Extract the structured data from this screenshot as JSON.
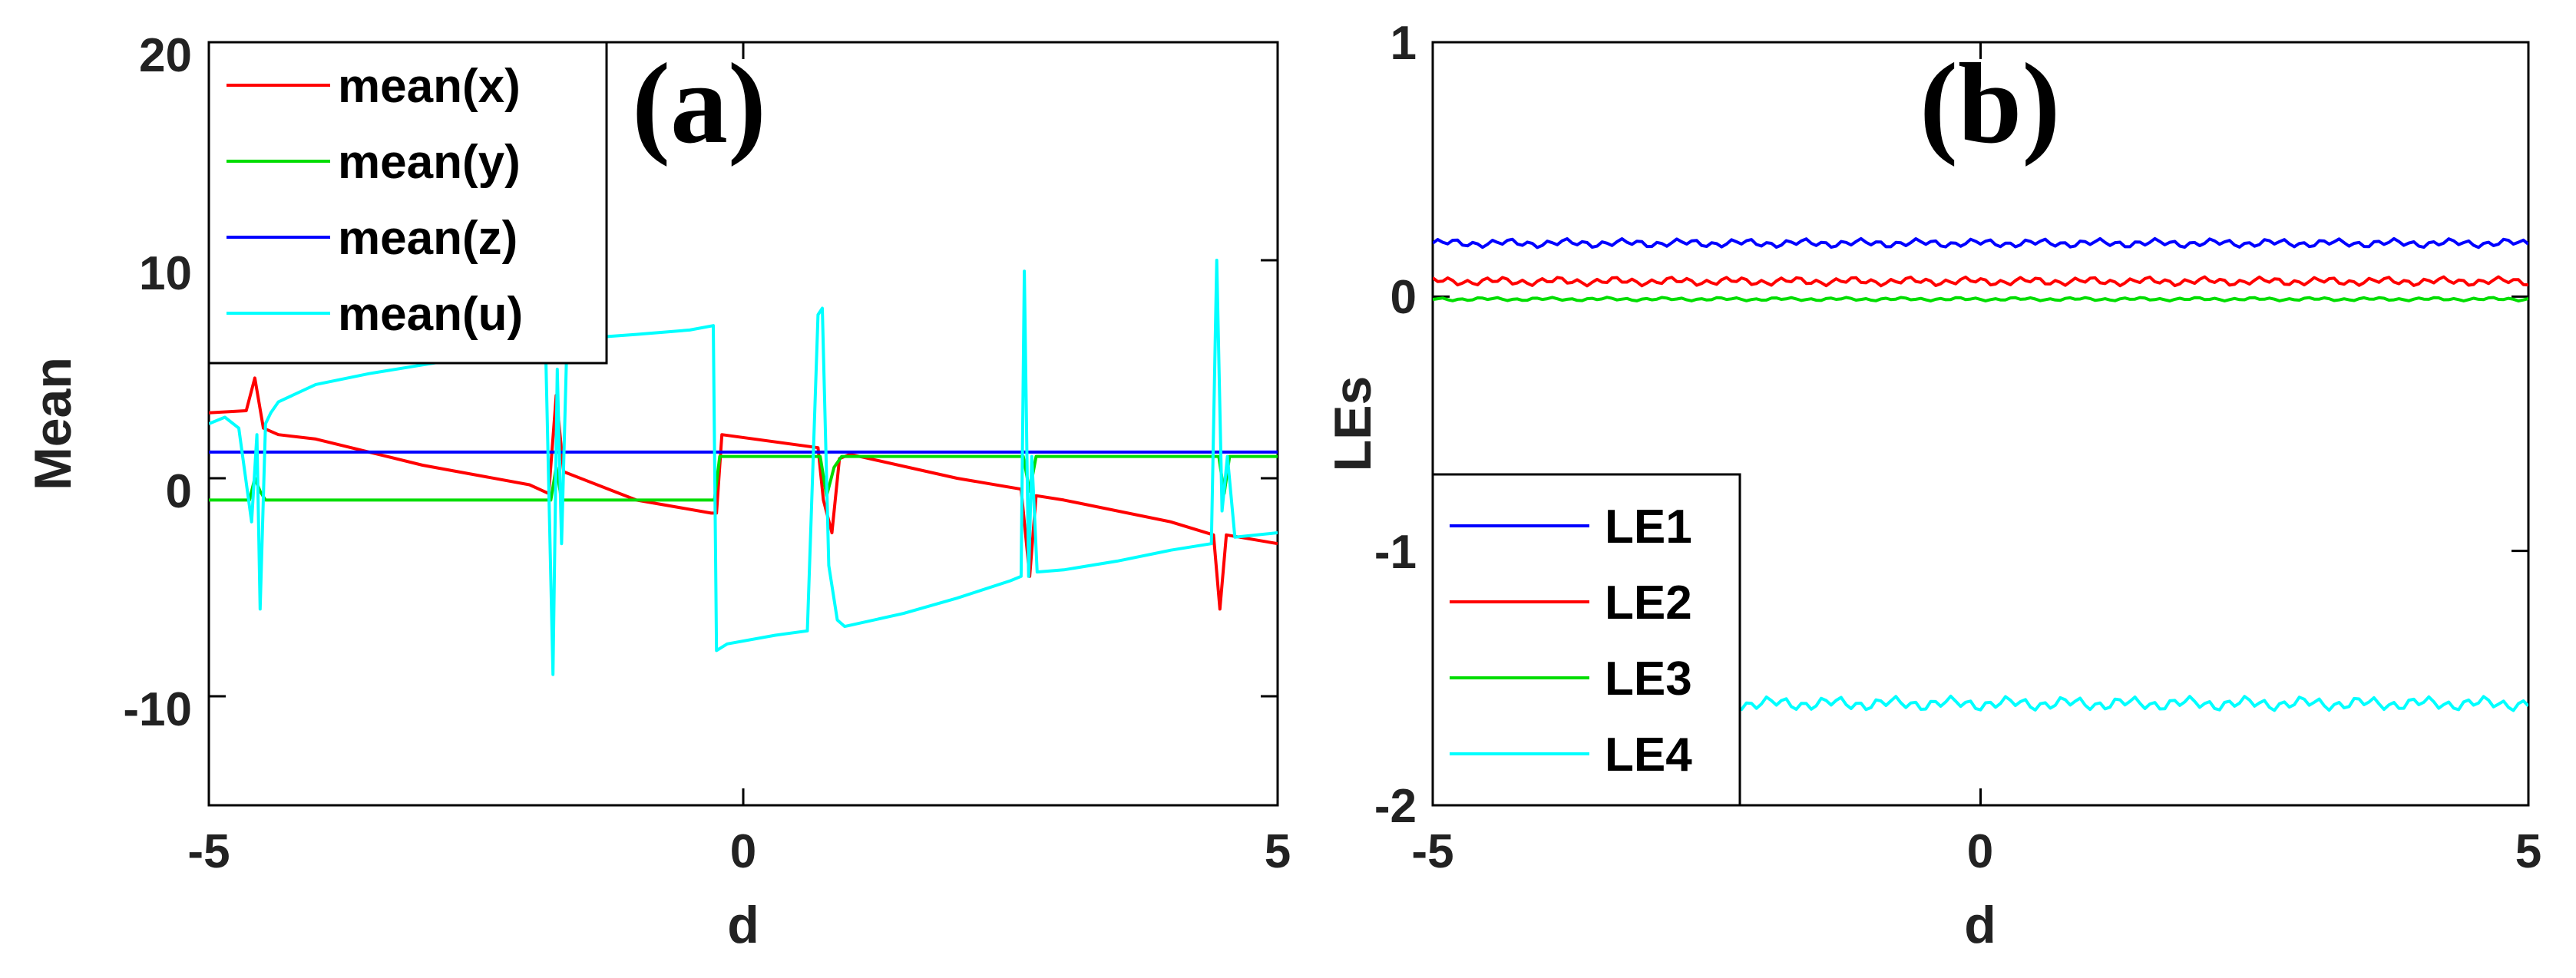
{
  "chart_data": [
    {
      "type": "line",
      "panel_label": "(a)",
      "xlabel": "d",
      "ylabel": "Mean",
      "xlim": [
        -5,
        5
      ],
      "ylim": [
        -15,
        20
      ],
      "xticks": [
        "-5",
        "0",
        "5"
      ],
      "yticks": [
        "20",
        "10",
        "0",
        "-10"
      ],
      "legend_position": "top-left",
      "series": [
        {
          "name": "mean(x)",
          "color": "#ff0000",
          "x": [
            -5,
            -4.65,
            -4.57,
            -4.49,
            -4.35,
            -4.0,
            -3.0,
            -2.0,
            -1.82,
            -1.75,
            -1.68,
            -1.0,
            -0.3,
            -0.25,
            -0.2,
            0.7,
            0.75,
            0.83,
            0.9,
            1.0,
            2.0,
            2.6,
            2.68,
            2.74,
            3.0,
            4.0,
            4.4,
            4.46,
            4.52,
            5
          ],
          "y": [
            3.0,
            3.1,
            4.6,
            2.3,
            2.0,
            1.8,
            0.6,
            -0.3,
            -0.7,
            3.8,
            0.3,
            -1.0,
            -1.6,
            -1.6,
            2.0,
            1.4,
            -1.0,
            -2.5,
            0.9,
            1.1,
            0.0,
            -0.5,
            -4.5,
            -0.8,
            -1.0,
            -2.0,
            -2.6,
            -6.0,
            -2.6,
            -3.0
          ]
        },
        {
          "name": "mean(y)",
          "color": "#00dd00",
          "x": [
            -5,
            -4.62,
            -4.57,
            -4.52,
            -4.47,
            -1.8,
            -1.75,
            -1.7,
            -0.27,
            -0.22,
            0.72,
            0.78,
            0.85,
            0.92,
            2.62,
            2.68,
            2.74,
            4.45,
            4.5,
            4.55,
            5
          ],
          "y": [
            -1.0,
            -1.0,
            0.0,
            -0.6,
            -1.0,
            -1.0,
            0.5,
            -1.0,
            -1.0,
            1.0,
            1.0,
            -0.8,
            0.5,
            1.0,
            1.0,
            -0.6,
            1.0,
            1.0,
            -0.7,
            1.0,
            1.0
          ]
        },
        {
          "name": "mean(z)",
          "color": "#0000ff",
          "x": [
            -5,
            5
          ],
          "y": [
            1.2,
            1.2
          ]
        },
        {
          "name": "mean(u)",
          "color": "#00ffff",
          "x": [
            -5,
            -4.85,
            -4.72,
            -4.6,
            -4.55,
            -4.52,
            -4.47,
            -4.42,
            -4.35,
            -4.0,
            -3.5,
            -3.0,
            -2.5,
            -2.0,
            -1.85,
            -1.78,
            -1.74,
            -1.7,
            -1.65,
            -1.55,
            -1.0,
            -0.5,
            -0.28,
            -0.25,
            -0.15,
            0.3,
            0.6,
            0.7,
            0.74,
            0.8,
            0.88,
            0.95,
            1.5,
            2.0,
            2.5,
            2.6,
            2.63,
            2.67,
            2.7,
            2.75,
            3.0,
            3.5,
            4.0,
            4.38,
            4.43,
            4.48,
            4.53,
            4.6,
            5
          ],
          "y": [
            2.5,
            2.8,
            2.3,
            -2.0,
            2.0,
            -6.0,
            2.5,
            3.0,
            3.5,
            4.3,
            4.8,
            5.2,
            5.6,
            6.0,
            6.2,
            -9.0,
            5.0,
            -3.0,
            6.2,
            6.4,
            6.6,
            6.8,
            7.0,
            -7.9,
            -7.6,
            -7.2,
            -7.0,
            7.5,
            7.8,
            -4.0,
            -6.5,
            -6.8,
            -6.2,
            -5.5,
            -4.7,
            -4.5,
            9.5,
            -4.5,
            1.0,
            -4.3,
            -4.2,
            -3.8,
            -3.3,
            -3.0,
            10.0,
            -1.5,
            1.0,
            -2.7,
            -2.5
          ]
        }
      ]
    },
    {
      "type": "line",
      "panel_label": "(b)",
      "xlabel": "d",
      "ylabel": "LEs",
      "xlim": [
        -5,
        5
      ],
      "ylim": [
        -2,
        1
      ],
      "xticks": [
        "-5",
        "0",
        "5"
      ],
      "yticks": [
        "1",
        "0",
        "-1",
        "-2"
      ],
      "legend_position": "bottom-left",
      "series": [
        {
          "name": "LE1",
          "color": "#0000ff",
          "x": [
            -5,
            5
          ],
          "y": [
            0.21,
            0.21
          ]
        },
        {
          "name": "LE2",
          "color": "#ff0000",
          "x": [
            -5,
            5
          ],
          "y": [
            0.06,
            0.06
          ]
        },
        {
          "name": "LE3",
          "color": "#00dd00",
          "x": [
            -5,
            5
          ],
          "y": [
            -0.01,
            -0.01
          ]
        },
        {
          "name": "LE4",
          "color": "#00ffff",
          "x": [
            -5,
            5
          ],
          "y": [
            -1.6,
            -1.6
          ]
        }
      ]
    }
  ]
}
